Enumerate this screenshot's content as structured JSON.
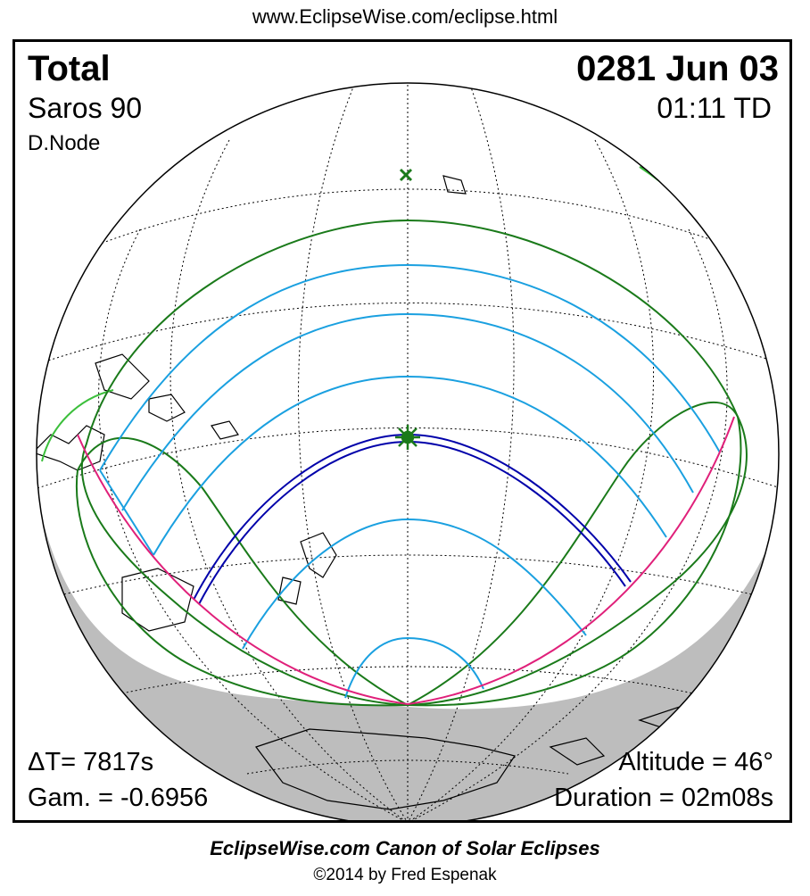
{
  "header": {
    "url": "www.EclipseWise.com/eclipse.html"
  },
  "eclipse": {
    "type": "Total",
    "saros": "Saros  90",
    "node": "D.Node",
    "date": "0281 Jun 03",
    "time": "01:11 TD"
  },
  "stats": {
    "delta_t": "ΔT=   7817s",
    "gamma": "Gam. = -0.6956",
    "altitude": "Altitude = 46°",
    "duration": "Duration = 02m08s"
  },
  "footer": {
    "title": "EclipseWise.com Canon of Solar Eclipses",
    "copyright": "©2014 by Fred Espenak"
  },
  "colors": {
    "penumbra_limits": "#1a7a1a",
    "central_path": "#0000aa",
    "magnitude_curves": "#1aa0e0",
    "horizon_limit": "#e0207a",
    "night_shade": "#bdbdbd",
    "coastline": "#000000",
    "sub_solar_marker": "#1a7a1a",
    "greatest_eclipse_marker": "#1a7a1a"
  },
  "map_markers": [
    {
      "name": "greatest-eclipse-marker",
      "symbol": "sun-star"
    },
    {
      "name": "sub-solar-point-marker",
      "symbol": "x-cross"
    }
  ]
}
